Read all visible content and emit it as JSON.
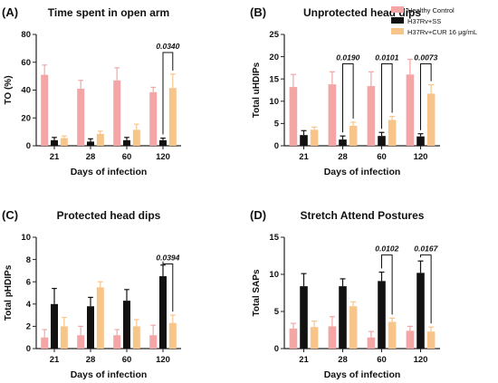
{
  "legend": {
    "items": [
      {
        "label": "Healthy Control",
        "color": "#F4A6A6"
      },
      {
        "label": "H37Rv+SS",
        "color": "#111111"
      },
      {
        "label": "H37Rv+CUR 16 μg/mL",
        "color": "#F7C58A"
      }
    ]
  },
  "chart_data": [
    {
      "type": "bar",
      "letter": "(A)",
      "title": "Time spent in open arm",
      "xlabel": "Days of infection",
      "ylabel": "TO (%)",
      "categories": [
        "21",
        "28",
        "60",
        "120"
      ],
      "ylim": [
        0,
        80
      ],
      "yticks": [
        0,
        20,
        40,
        60,
        80
      ],
      "grid": false,
      "series": [
        {
          "name": "Healthy Control",
          "color": "#F4A6A6",
          "values": [
            51,
            41,
            47,
            38.5
          ],
          "errors": [
            7,
            6,
            9,
            3.5
          ]
        },
        {
          "name": "H37Rv+SS",
          "color": "#111111",
          "values": [
            4,
            3,
            4,
            4
          ],
          "errors": [
            2,
            2,
            2,
            1.5
          ]
        },
        {
          "name": "H37Rv+CUR 16 μg/mL",
          "color": "#F7C58A",
          "values": [
            5.5,
            8.5,
            11.5,
            41.5
          ],
          "errors": [
            1.5,
            2,
            4,
            10
          ]
        }
      ],
      "annotations": [
        {
          "category_index": 3,
          "from_series": 1,
          "to_series": 2,
          "top": 67,
          "text": "0.0340"
        }
      ]
    },
    {
      "type": "bar",
      "letter": "(B)",
      "title": "Unprotected head dips",
      "xlabel": "Days of infection",
      "ylabel": "Total uHDIPs",
      "categories": [
        "21",
        "28",
        "60",
        "120"
      ],
      "ylim": [
        0,
        25
      ],
      "yticks": [
        0,
        5,
        10,
        15,
        20,
        25
      ],
      "grid": false,
      "series": [
        {
          "name": "Healthy Control",
          "color": "#F4A6A6",
          "values": [
            13.2,
            13.8,
            13.4,
            16
          ],
          "errors": [
            2.8,
            2.8,
            3.2,
            3.4
          ]
        },
        {
          "name": "H37Rv+SS",
          "color": "#111111",
          "values": [
            2.4,
            1.4,
            2.2,
            2.1
          ],
          "errors": [
            1,
            0.8,
            0.8,
            0.6
          ]
        },
        {
          "name": "H37Rv+CUR 16 μg/mL",
          "color": "#F7C58A",
          "values": [
            3.6,
            4.5,
            5.8,
            11.7
          ],
          "errors": [
            0.6,
            0.8,
            0.8,
            2
          ]
        }
      ],
      "annotations": [
        {
          "category_index": 1,
          "from_series": 1,
          "to_series": 2,
          "top": 18.4,
          "text": "0.0190"
        },
        {
          "category_index": 2,
          "from_series": 1,
          "to_series": 2,
          "top": 18.4,
          "text": "0.0101"
        },
        {
          "category_index": 3,
          "from_series": 1,
          "to_series": 2,
          "top": 18.4,
          "text": "0.0073"
        }
      ]
    },
    {
      "type": "bar",
      "letter": "(C)",
      "title": "Protected head dips",
      "xlabel": "Days of infection",
      "ylabel": "Total pHDIPs",
      "categories": [
        "21",
        "28",
        "60",
        "120"
      ],
      "ylim": [
        0,
        10
      ],
      "yticks": [
        0,
        2,
        4,
        6,
        8,
        10
      ],
      "grid": false,
      "series": [
        {
          "name": "Healthy Control",
          "color": "#F4A6A6",
          "values": [
            1,
            1.2,
            1.2,
            1.2
          ],
          "errors": [
            0.7,
            0.8,
            0.5,
            0.9
          ]
        },
        {
          "name": "H37Rv+SS",
          "color": "#111111",
          "values": [
            4,
            3.8,
            4.3,
            6.5
          ],
          "errors": [
            1.4,
            0.8,
            1,
            1
          ]
        },
        {
          "name": "H37Rv+CUR 16 μg/mL",
          "color": "#F7C58A",
          "values": [
            2,
            5.5,
            2,
            2.3
          ],
          "errors": [
            0.8,
            0.5,
            0.6,
            0.7
          ]
        }
      ],
      "annotations": [
        {
          "category_index": 3,
          "from_series": 1,
          "to_series": 2,
          "top": 7.6,
          "text": "0.0394"
        }
      ]
    },
    {
      "type": "bar",
      "letter": "(D)",
      "title": "Stretch Attend Postures",
      "xlabel": "Days of infection",
      "ylabel": "Total SAPs",
      "categories": [
        "21",
        "28",
        "60",
        "120"
      ],
      "ylim": [
        0,
        15
      ],
      "yticks": [
        0,
        5,
        10,
        15
      ],
      "grid": false,
      "series": [
        {
          "name": "Healthy Control",
          "color": "#F4A6A6",
          "values": [
            2.7,
            3,
            1.5,
            2.4
          ],
          "errors": [
            0.7,
            1.3,
            0.8,
            0.6
          ]
        },
        {
          "name": "H37Rv+SS",
          "color": "#111111",
          "values": [
            8.4,
            8.4,
            9.1,
            10.2
          ],
          "errors": [
            1.7,
            1,
            1.2,
            1.6
          ]
        },
        {
          "name": "H37Rv+CUR 16 μg/mL",
          "color": "#F7C58A",
          "values": [
            2.9,
            5.7,
            3.6,
            2.3
          ],
          "errors": [
            0.8,
            0.6,
            0.5,
            0.6
          ]
        }
      ],
      "annotations": [
        {
          "category_index": 2,
          "from_series": 1,
          "to_series": 2,
          "top": 12.6,
          "text": "0.0102"
        },
        {
          "category_index": 3,
          "from_series": 1,
          "to_series": 2,
          "top": 12.6,
          "text": "0.0167"
        }
      ]
    }
  ]
}
